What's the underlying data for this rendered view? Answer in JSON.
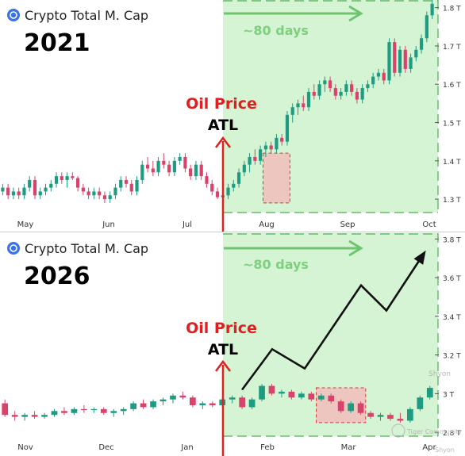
{
  "chart_data": [
    {
      "type": "candlestick",
      "title": "Crypto Total M. Cap",
      "year": "2021",
      "annotation": {
        "label": "Oil Price",
        "sublabel": "ATL"
      },
      "period_label": "~80 days",
      "x_ticks": [
        "May",
        "Jun",
        "Jul",
        "Aug",
        "Sep",
        "Oct"
      ],
      "y_ticks": [
        "1.3 T",
        "1.4 T",
        "1.5 T",
        "1.6 T",
        "1.7 T",
        "1.8 T"
      ],
      "y_tick_values": [
        1.3,
        1.4,
        1.5,
        1.6,
        1.7,
        1.8
      ],
      "ylim": [
        1.265,
        1.82
      ],
      "candles": [
        [
          1.32,
          1.34,
          1.31,
          1.33
        ],
        [
          1.33,
          1.34,
          1.3,
          1.31
        ],
        [
          1.31,
          1.33,
          1.3,
          1.32
        ],
        [
          1.32,
          1.33,
          1.3,
          1.31
        ],
        [
          1.31,
          1.34,
          1.3,
          1.33
        ],
        [
          1.33,
          1.36,
          1.32,
          1.35
        ],
        [
          1.35,
          1.36,
          1.3,
          1.31
        ],
        [
          1.31,
          1.33,
          1.3,
          1.32
        ],
        [
          1.32,
          1.34,
          1.31,
          1.33
        ],
        [
          1.33,
          1.35,
          1.32,
          1.34
        ],
        [
          1.34,
          1.37,
          1.33,
          1.36
        ],
        [
          1.36,
          1.37,
          1.34,
          1.35
        ],
        [
          1.35,
          1.37,
          1.33,
          1.36
        ],
        [
          1.36,
          1.37,
          1.35,
          1.355
        ],
        [
          1.355,
          1.36,
          1.32,
          1.33
        ],
        [
          1.33,
          1.34,
          1.31,
          1.32
        ],
        [
          1.32,
          1.33,
          1.3,
          1.31
        ],
        [
          1.31,
          1.33,
          1.3,
          1.32
        ],
        [
          1.32,
          1.33,
          1.3,
          1.31
        ],
        [
          1.31,
          1.32,
          1.29,
          1.3
        ],
        [
          1.3,
          1.32,
          1.29,
          1.31
        ],
        [
          1.31,
          1.34,
          1.3,
          1.33
        ],
        [
          1.33,
          1.36,
          1.32,
          1.35
        ],
        [
          1.35,
          1.36,
          1.33,
          1.34
        ],
        [
          1.34,
          1.35,
          1.31,
          1.32
        ],
        [
          1.32,
          1.36,
          1.31,
          1.35
        ],
        [
          1.35,
          1.4,
          1.34,
          1.39
        ],
        [
          1.39,
          1.41,
          1.37,
          1.38
        ],
        [
          1.38,
          1.4,
          1.36,
          1.37
        ],
        [
          1.37,
          1.41,
          1.36,
          1.4
        ],
        [
          1.4,
          1.42,
          1.38,
          1.39
        ],
        [
          1.39,
          1.4,
          1.36,
          1.37
        ],
        [
          1.37,
          1.41,
          1.36,
          1.4
        ],
        [
          1.4,
          1.42,
          1.39,
          1.41
        ],
        [
          1.41,
          1.42,
          1.37,
          1.38
        ],
        [
          1.38,
          1.39,
          1.35,
          1.36
        ],
        [
          1.36,
          1.4,
          1.35,
          1.39
        ],
        [
          1.39,
          1.4,
          1.35,
          1.36
        ],
        [
          1.36,
          1.37,
          1.33,
          1.34
        ],
        [
          1.34,
          1.35,
          1.31,
          1.32
        ],
        [
          1.32,
          1.33,
          1.3,
          1.305
        ],
        [
          1.305,
          1.32,
          1.3,
          1.31
        ],
        [
          1.31,
          1.34,
          1.3,
          1.33
        ],
        [
          1.33,
          1.35,
          1.32,
          1.34
        ],
        [
          1.34,
          1.38,
          1.33,
          1.37
        ],
        [
          1.37,
          1.4,
          1.36,
          1.39
        ],
        [
          1.39,
          1.42,
          1.37,
          1.41
        ],
        [
          1.41,
          1.43,
          1.39,
          1.4
        ],
        [
          1.4,
          1.44,
          1.39,
          1.43
        ],
        [
          1.43,
          1.45,
          1.41,
          1.44
        ],
        [
          1.44,
          1.45,
          1.42,
          1.43
        ],
        [
          1.43,
          1.47,
          1.42,
          1.46
        ],
        [
          1.46,
          1.47,
          1.44,
          1.45
        ],
        [
          1.45,
          1.53,
          1.44,
          1.52
        ],
        [
          1.52,
          1.55,
          1.5,
          1.54
        ],
        [
          1.54,
          1.56,
          1.52,
          1.55
        ],
        [
          1.55,
          1.57,
          1.53,
          1.54
        ],
        [
          1.54,
          1.59,
          1.53,
          1.58
        ],
        [
          1.58,
          1.6,
          1.56,
          1.57
        ],
        [
          1.57,
          1.61,
          1.56,
          1.6
        ],
        [
          1.6,
          1.62,
          1.58,
          1.61
        ],
        [
          1.61,
          1.62,
          1.58,
          1.59
        ],
        [
          1.59,
          1.6,
          1.56,
          1.57
        ],
        [
          1.57,
          1.59,
          1.56,
          1.58
        ],
        [
          1.58,
          1.61,
          1.57,
          1.6
        ],
        [
          1.6,
          1.61,
          1.57,
          1.58
        ],
        [
          1.58,
          1.59,
          1.55,
          1.56
        ],
        [
          1.56,
          1.6,
          1.55,
          1.59
        ],
        [
          1.59,
          1.61,
          1.58,
          1.6
        ],
        [
          1.6,
          1.63,
          1.59,
          1.62
        ],
        [
          1.62,
          1.64,
          1.61,
          1.63
        ],
        [
          1.63,
          1.64,
          1.6,
          1.61
        ],
        [
          1.61,
          1.72,
          1.6,
          1.71
        ],
        [
          1.71,
          1.72,
          1.62,
          1.63
        ],
        [
          1.63,
          1.7,
          1.62,
          1.69
        ],
        [
          1.69,
          1.7,
          1.63,
          1.64
        ],
        [
          1.64,
          1.68,
          1.63,
          1.67
        ],
        [
          1.67,
          1.7,
          1.66,
          1.69
        ],
        [
          1.69,
          1.73,
          1.68,
          1.72
        ],
        [
          1.72,
          1.79,
          1.71,
          1.78
        ],
        [
          1.78,
          1.82,
          1.77,
          1.81
        ]
      ],
      "highlight_x_range": [
        49,
        54
      ],
      "highlight_y_range": [
        1.29,
        1.42
      ]
    },
    {
      "type": "candlestick",
      "title": "Crypto Total M. Cap",
      "year": "2026",
      "annotation": {
        "label": "Oil Price",
        "sublabel": "ATL"
      },
      "period_label": "~80 days",
      "x_ticks": [
        "Nov",
        "Dec",
        "Jan",
        "Feb",
        "Mar",
        "Apr"
      ],
      "y_ticks": [
        "2.8 T",
        "3 T",
        "3.2 T",
        "3.4 T",
        "3.6 T",
        "3.8 T"
      ],
      "y_tick_values": [
        2.8,
        3.0,
        3.2,
        3.4,
        3.6,
        3.8
      ],
      "ylim": [
        2.78,
        3.83
      ],
      "candles": [
        [
          2.95,
          2.97,
          2.88,
          2.89
        ],
        [
          2.89,
          2.91,
          2.86,
          2.88
        ],
        [
          2.88,
          2.9,
          2.86,
          2.89
        ],
        [
          2.89,
          2.91,
          2.87,
          2.88
        ],
        [
          2.88,
          2.9,
          2.87,
          2.89
        ],
        [
          2.89,
          2.92,
          2.88,
          2.91
        ],
        [
          2.91,
          2.93,
          2.89,
          2.9
        ],
        [
          2.9,
          2.93,
          2.89,
          2.92
        ],
        [
          2.92,
          2.94,
          2.9,
          2.915
        ],
        [
          2.915,
          2.93,
          2.9,
          2.92
        ],
        [
          2.92,
          2.93,
          2.89,
          2.9
        ],
        [
          2.9,
          2.92,
          2.88,
          2.91
        ],
        [
          2.91,
          2.93,
          2.89,
          2.92
        ],
        [
          2.92,
          2.96,
          2.91,
          2.95
        ],
        [
          2.95,
          2.97,
          2.92,
          2.93
        ],
        [
          2.93,
          2.97,
          2.92,
          2.96
        ],
        [
          2.96,
          2.98,
          2.94,
          2.97
        ],
        [
          2.97,
          3.0,
          2.95,
          2.99
        ],
        [
          2.99,
          3.01,
          2.97,
          2.98
        ],
        [
          2.98,
          2.99,
          2.93,
          2.94
        ],
        [
          2.94,
          2.96,
          2.92,
          2.95
        ],
        [
          2.95,
          2.96,
          2.93,
          2.94
        ],
        [
          2.94,
          2.98,
          2.93,
          2.97
        ],
        [
          2.97,
          2.99,
          2.95,
          2.98
        ],
        [
          2.98,
          2.99,
          2.92,
          2.93
        ],
        [
          2.93,
          2.98,
          2.92,
          2.97
        ],
        [
          2.97,
          3.05,
          2.96,
          3.04
        ],
        [
          3.04,
          3.05,
          2.99,
          3.0
        ],
        [
          3.0,
          3.02,
          2.98,
          3.01
        ],
        [
          3.01,
          3.02,
          2.97,
          2.98
        ],
        [
          2.98,
          3.01,
          2.97,
          3.0
        ],
        [
          3.0,
          3.01,
          2.96,
          2.97
        ],
        [
          2.97,
          3.0,
          2.96,
          2.99
        ],
        [
          2.99,
          3.0,
          2.95,
          2.96
        ],
        [
          2.96,
          2.97,
          2.9,
          2.91
        ],
        [
          2.91,
          2.96,
          2.9,
          2.95
        ],
        [
          2.95,
          2.96,
          2.89,
          2.9
        ],
        [
          2.9,
          2.91,
          2.87,
          2.88
        ],
        [
          2.88,
          2.9,
          2.86,
          2.89
        ],
        [
          2.89,
          2.9,
          2.86,
          2.87
        ],
        [
          2.87,
          2.9,
          2.85,
          2.86
        ],
        [
          2.86,
          2.93,
          2.85,
          2.92
        ],
        [
          2.92,
          2.99,
          2.91,
          2.98
        ],
        [
          2.98,
          3.04,
          2.97,
          3.03
        ]
      ],
      "highlight_x_range": [
        32,
        37
      ],
      "highlight_y_range": [
        2.85,
        3.03
      ],
      "projection_path": [
        [
          3.02,
          3.02
        ],
        [
          3.23,
          3.23
        ],
        [
          3.13,
          3.13
        ],
        [
          3.56,
          3.56
        ],
        [
          3.43,
          3.43
        ],
        [
          3.73,
          3.73
        ]
      ]
    }
  ],
  "watermarks": [
    "Shyon",
    "Tiger Community",
    "Shyon"
  ]
}
